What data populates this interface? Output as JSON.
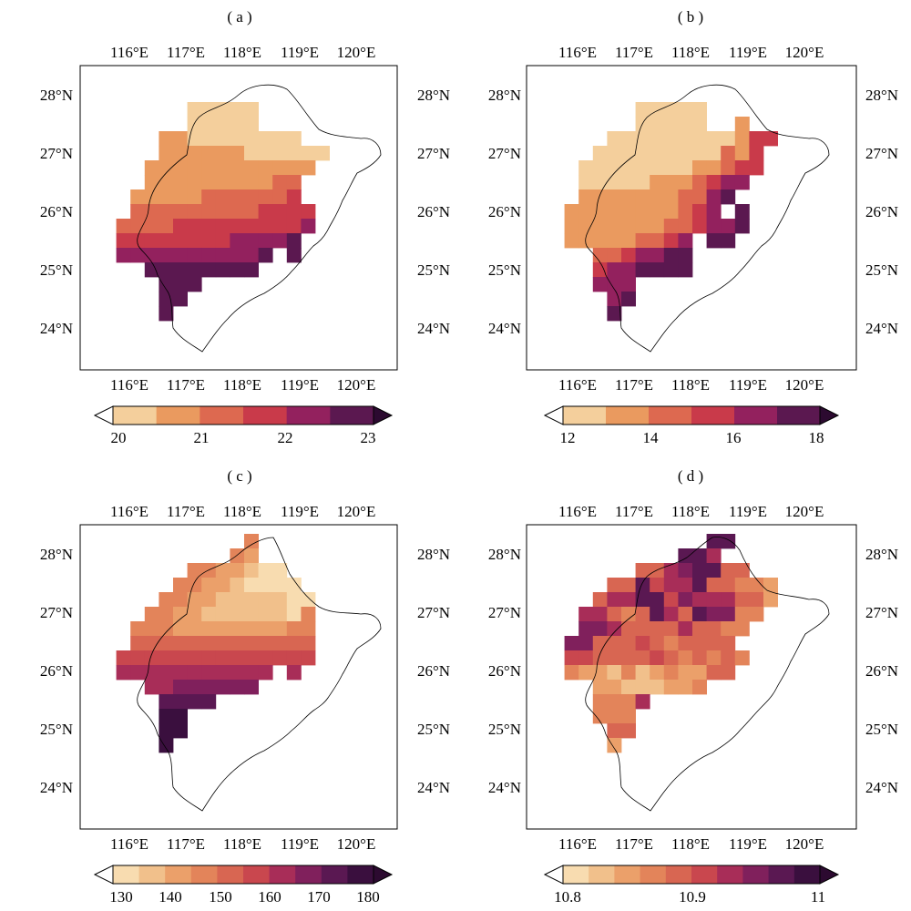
{
  "figure": {
    "panels": [
      {
        "label": "( a )",
        "lon_ticks": [
          "116°E",
          "117°E",
          "118°E",
          "119°E",
          "120°E"
        ],
        "lat_ticks_left": [
          "28°N",
          "27°N",
          "26°N",
          "25°N",
          "24°N"
        ],
        "lat_ticks_right": [
          "28°N",
          "27°N",
          "26°N",
          "25°N",
          "24°N"
        ],
        "colorbar": {
          "labels": [
            "20",
            "21",
            "22",
            "23"
          ],
          "colors": [
            "#f4cf9c",
            "#ea9a5f",
            "#dd6950",
            "#c93a4a",
            "#93215e",
            "#5b1850"
          ],
          "extend_low_color": "#ffffff",
          "extend_high_color": "#2c0a30"
        }
      },
      {
        "label": "( b )",
        "lon_ticks": [
          "116°E",
          "117°E",
          "118°E",
          "119°E",
          "120°E"
        ],
        "lat_ticks_left": [
          "28°N",
          "27°N",
          "26°N",
          "25°N",
          "24°N"
        ],
        "lat_ticks_right": [
          "28°N",
          "27°N",
          "26°N",
          "25°N",
          "24°N"
        ],
        "colorbar": {
          "labels": [
            "12",
            "14",
            "16",
            "18"
          ],
          "colors": [
            "#f4cf9c",
            "#ea9a5f",
            "#dd6950",
            "#c93a4a",
            "#93215e",
            "#5b1850"
          ],
          "extend_low_color": "#ffffff",
          "extend_high_color": "#2c0a30"
        }
      },
      {
        "label": "( c )",
        "lon_ticks": [
          "116°E",
          "117°E",
          "118°E",
          "119°E",
          "120°E"
        ],
        "lat_ticks_left": [
          "28°N",
          "27°N",
          "26°N",
          "25°N",
          "24°N"
        ],
        "lat_ticks_right": [
          "28°N",
          "27°N",
          "26°N",
          "25°N",
          "24°N"
        ],
        "colorbar": {
          "labels": [
            "130",
            "140",
            "150",
            "160",
            "170",
            "180"
          ],
          "colors": [
            "#f8dcb0",
            "#f1c08b",
            "#eba06a",
            "#e3845a",
            "#d86652",
            "#c9474e",
            "#a82d58",
            "#80205c",
            "#5a1852",
            "#3a0f3e"
          ],
          "extend_low_color": "#ffffff",
          "extend_high_color": "#2c0a30"
        }
      },
      {
        "label": "( d )",
        "lon_ticks": [
          "116°E",
          "117°E",
          "118°E",
          "119°E",
          "120°E"
        ],
        "lat_ticks_left": [
          "28°N",
          "27°N",
          "26°N",
          "25°N",
          "24°N"
        ],
        "lat_ticks_right": [
          "28°N",
          "27°N",
          "26°N",
          "25°N",
          "24°N"
        ],
        "colorbar": {
          "labels": [
            "10.8",
            "10.9",
            "11"
          ],
          "colors": [
            "#f8dcb0",
            "#f1c08b",
            "#eba06a",
            "#e3845a",
            "#d86652",
            "#c9474e",
            "#a82d58",
            "#80205c",
            "#5a1852",
            "#3a0f3e"
          ],
          "extend_low_color": "#ffffff",
          "extend_high_color": "#2c0a30"
        }
      }
    ]
  }
}
